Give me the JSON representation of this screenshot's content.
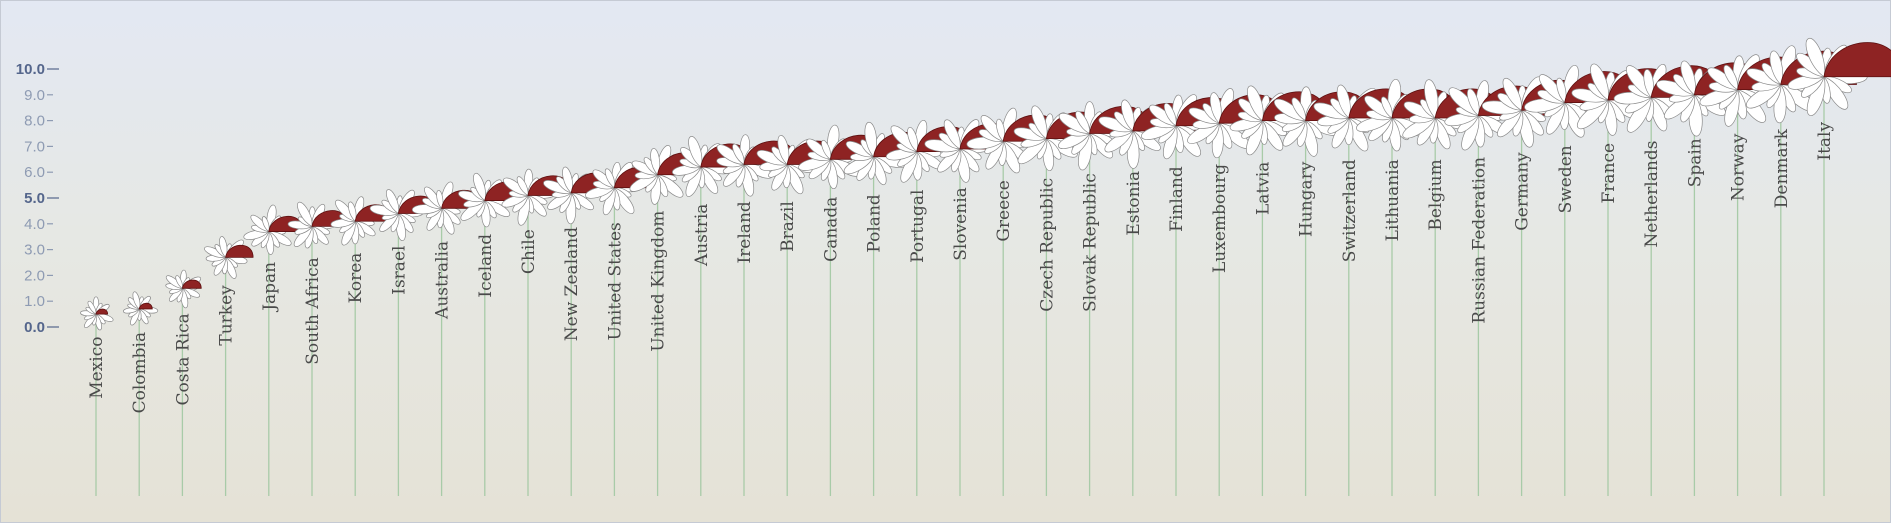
{
  "chart_data": {
    "type": "flower",
    "colors": {
      "accent": "#8e2323",
      "petal": "#ffffff",
      "stem": "#a8cba8",
      "axis_major": "#55668c",
      "axis_minor": "#8e9bb3"
    },
    "y_ticks": [
      "10.0",
      "9.0",
      "8.0",
      "7.0",
      "6.0",
      "5.0",
      "4.0",
      "3.0",
      "2.0",
      "1.0",
      "0.0"
    ],
    "ylim": [
      0,
      10
    ],
    "categories": [
      "Mexico",
      "Colombia",
      "Costa Rica",
      "Turkey",
      "Japan",
      "South Africa",
      "Korea",
      "Israel",
      "Australia",
      "Iceland",
      "Chile",
      "New Zealand",
      "United States",
      "United Kingdom",
      "Austria",
      "Ireland",
      "Brazil",
      "Canada",
      "Poland",
      "Portugal",
      "Slovenia",
      "Greece",
      "Czech Republic",
      "Slovak Republic",
      "Estonia",
      "Finland",
      "Luxembourg",
      "Latvia",
      "Hungary",
      "Switzerland",
      "Lithuania",
      "Belgium",
      "Russian Federation",
      "Germany",
      "Sweden",
      "France",
      "Netherlands",
      "Spain",
      "Norway",
      "Denmark",
      "Italy"
    ],
    "values": [
      0.5,
      0.7,
      1.5,
      2.7,
      3.7,
      3.9,
      4.1,
      4.4,
      4.6,
      4.9,
      5.1,
      5.2,
      5.4,
      5.9,
      6.2,
      6.3,
      6.3,
      6.5,
      6.6,
      6.8,
      6.9,
      7.2,
      7.3,
      7.5,
      7.6,
      7.8,
      7.9,
      8.0,
      8.0,
      8.1,
      8.1,
      8.1,
      8.2,
      8.4,
      8.7,
      8.8,
      8.9,
      9.0,
      9.2,
      9.4,
      9.7
    ]
  }
}
